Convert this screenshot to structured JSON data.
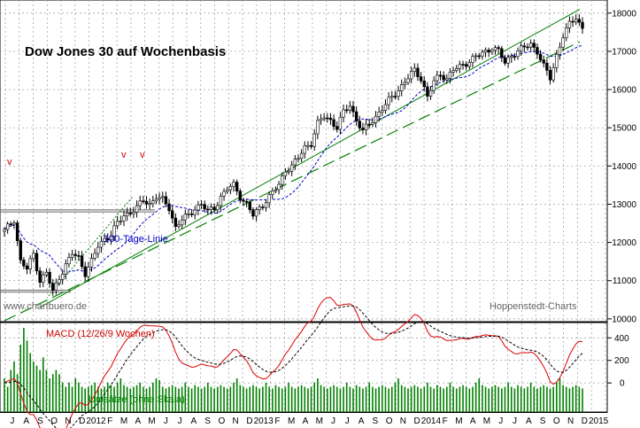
{
  "chart_data": {
    "type": "candlestick",
    "title": "Dow Jones 30 auf Wochenbasis",
    "watermark_left": "www.chartbuero.de",
    "watermark_right": "Hoppenstedt-Charts",
    "ma_label": "100-Tage-Linie",
    "macd_label": "MACD (12/26/9 Wochen)",
    "volume_label": "Umsätze (ohne Skala)",
    "price_axis": {
      "ticks": [
        10000,
        11000,
        12000,
        13000,
        14000,
        15000,
        16000,
        17000,
        18000
      ],
      "ylim": [
        9950,
        18250
      ]
    },
    "macd_axis": {
      "ticks": [
        400,
        200,
        0
      ],
      "ylim": [
        -250,
        520
      ]
    },
    "x_labels": [
      "J",
      "A",
      "S",
      "O",
      "N",
      "D",
      "2012",
      "F",
      "M",
      "A",
      "M",
      "J",
      "J",
      "A",
      "S",
      "O",
      "N",
      "D",
      "2013",
      "F",
      "M",
      "A",
      "M",
      "J",
      "J",
      "A",
      "S",
      "O",
      "N",
      "D",
      "2014",
      "F",
      "M",
      "A",
      "M",
      "J",
      "J",
      "A",
      "S",
      "O",
      "N",
      "D",
      "2015"
    ],
    "markers": [
      "v",
      "v",
      "v"
    ],
    "anchors": [
      [
        0,
        12300
      ],
      [
        3,
        12600
      ],
      [
        5,
        11500
      ],
      [
        7,
        11300
      ],
      [
        9,
        11700
      ],
      [
        11,
        11000
      ],
      [
        13,
        11200
      ],
      [
        15,
        10700
      ],
      [
        17,
        11100
      ],
      [
        19,
        11400
      ],
      [
        21,
        11700
      ],
      [
        23,
        11600
      ],
      [
        25,
        11200
      ],
      [
        27,
        11500
      ],
      [
        29,
        11900
      ],
      [
        31,
        12100
      ],
      [
        33,
        12200
      ],
      [
        35,
        12500
      ],
      [
        37,
        12700
      ],
      [
        39,
        12800
      ],
      [
        41,
        12900
      ],
      [
        43,
        13100
      ],
      [
        45,
        13000
      ],
      [
        47,
        13200
      ],
      [
        49,
        13100
      ],
      [
        51,
        12900
      ],
      [
        53,
        12400
      ],
      [
        55,
        12600
      ],
      [
        57,
        12700
      ],
      [
        59,
        12900
      ],
      [
        61,
        13000
      ],
      [
        63,
        12800
      ],
      [
        65,
        12900
      ],
      [
        67,
        13200
      ],
      [
        69,
        13400
      ],
      [
        71,
        13500
      ],
      [
        73,
        13200
      ],
      [
        75,
        13000
      ],
      [
        77,
        12700
      ],
      [
        79,
        12900
      ],
      [
        81,
        13100
      ],
      [
        83,
        13300
      ],
      [
        85,
        13500
      ],
      [
        87,
        13900
      ],
      [
        89,
        14000
      ],
      [
        91,
        14200
      ],
      [
        93,
        14500
      ],
      [
        95,
        14600
      ],
      [
        97,
        15100
      ],
      [
        99,
        15300
      ],
      [
        101,
        15200
      ],
      [
        103,
        15000
      ],
      [
        105,
        15400
      ],
      [
        107,
        15600
      ],
      [
        109,
        15200
      ],
      [
        111,
        14900
      ],
      [
        113,
        15100
      ],
      [
        115,
        15300
      ],
      [
        117,
        15500
      ],
      [
        119,
        15700
      ],
      [
        121,
        15900
      ],
      [
        123,
        16100
      ],
      [
        125,
        16300
      ],
      [
        127,
        16500
      ],
      [
        129,
        16300
      ],
      [
        131,
        15800
      ],
      [
        133,
        16200
      ],
      [
        135,
        16400
      ],
      [
        137,
        16300
      ],
      [
        139,
        16500
      ],
      [
        141,
        16600
      ],
      [
        143,
        16700
      ],
      [
        145,
        16800
      ],
      [
        147,
        16900
      ],
      [
        149,
        17000
      ],
      [
        151,
        17100
      ],
      [
        153,
        17000
      ],
      [
        155,
        16700
      ],
      [
        157,
        16900
      ],
      [
        159,
        17000
      ],
      [
        161,
        17100
      ],
      [
        163,
        17200
      ],
      [
        165,
        17000
      ],
      [
        167,
        16600
      ],
      [
        169,
        16300
      ],
      [
        171,
        16900
      ],
      [
        173,
        17400
      ],
      [
        175,
        17700
      ],
      [
        177,
        17900
      ],
      [
        179,
        17600
      ]
    ],
    "volume": [
      0.4,
      0.3,
      0.5,
      0.6,
      0.45,
      0.8,
      1.0,
      0.85,
      0.7,
      0.6,
      0.55,
      0.5,
      0.65,
      0.5,
      0.4,
      0.45,
      0.5,
      0.45,
      0.35,
      0.3,
      0.35,
      0.3,
      0.4,
      0.35,
      0.3,
      0.28,
      0.3,
      0.32,
      0.35,
      0.3,
      0.28,
      0.3,
      0.35,
      0.32,
      0.3,
      0.35,
      0.4,
      0.32,
      0.3,
      0.28,
      0.3,
      0.32,
      0.35,
      0.3,
      0.28,
      0.3,
      0.35,
      0.4,
      0.38,
      0.3,
      0.28,
      0.3,
      0.32,
      0.3,
      0.28,
      0.3,
      0.35,
      0.3,
      0.28,
      0.32,
      0.3,
      0.28,
      0.3,
      0.35,
      0.3,
      0.28,
      0.3,
      0.32,
      0.3,
      0.28,
      0.3,
      0.35,
      0.4,
      0.32,
      0.3,
      0.28,
      0.3,
      0.32,
      0.3,
      0.28,
      0.3,
      0.35,
      0.3,
      0.28,
      0.32,
      0.3,
      0.28,
      0.3,
      0.35,
      0.3,
      0.28,
      0.3,
      0.32,
      0.3,
      0.28,
      0.3,
      0.35,
      0.4,
      0.32,
      0.3,
      0.28,
      0.3,
      0.32,
      0.3,
      0.28,
      0.3,
      0.35,
      0.3,
      0.28,
      0.32,
      0.3,
      0.28,
      0.3,
      0.35,
      0.3,
      0.28,
      0.3,
      0.32,
      0.3,
      0.28,
      0.3,
      0.35,
      0.4,
      0.32,
      0.3,
      0.28,
      0.3,
      0.32,
      0.3,
      0.28,
      0.3,
      0.35,
      0.3,
      0.28,
      0.32,
      0.3,
      0.28,
      0.3,
      0.35,
      0.3,
      0.28,
      0.3,
      0.32,
      0.3,
      0.28,
      0.3,
      0.35,
      0.4,
      0.32,
      0.3,
      0.28,
      0.3,
      0.32,
      0.3,
      0.28,
      0.3,
      0.35,
      0.3,
      0.28,
      0.32,
      0.3,
      0.28,
      0.3,
      0.35,
      0.3,
      0.28,
      0.3,
      0.32,
      0.3,
      0.28,
      0.3,
      0.35,
      0.4,
      0.32,
      0.3,
      0.28,
      0.3,
      0.32,
      0.3,
      0.28,
      0.3,
      0.45,
      0.5,
      0.3
    ]
  }
}
